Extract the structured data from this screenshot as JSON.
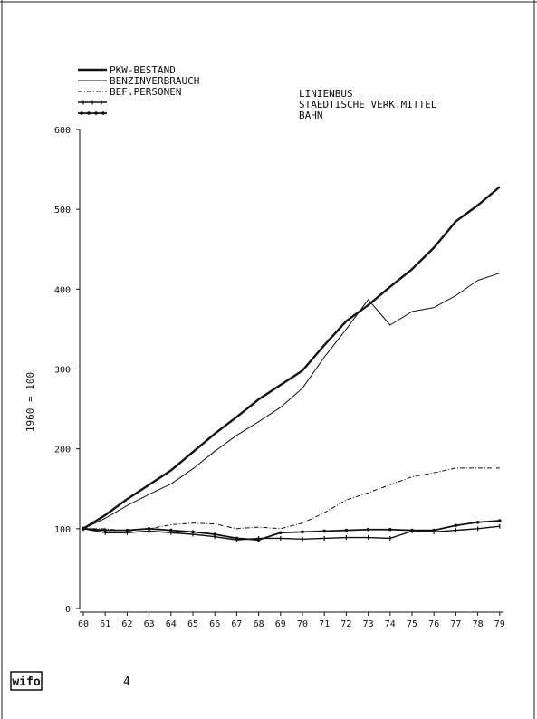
{
  "page": {
    "number": "4",
    "logo_text": "wifo"
  },
  "chart_data": {
    "type": "line",
    "title": "",
    "xlabel": "",
    "ylabel": "1960 = 100",
    "ylim": [
      0,
      600
    ],
    "yticks": [
      0,
      100,
      200,
      300,
      400,
      500,
      600
    ],
    "grid": false,
    "legend_placement": "top-left",
    "x": [
      "60",
      "61",
      "62",
      "63",
      "64",
      "65",
      "66",
      "67",
      "68",
      "69",
      "70",
      "71",
      "72",
      "73",
      "74",
      "75",
      "76",
      "77",
      "78",
      "79"
    ],
    "series": [
      {
        "name": "PKW-BESTAND",
        "style": "thick",
        "values": [
          100,
          117,
          137,
          155,
          173,
          196,
          219,
          240,
          262,
          280,
          298,
          330,
          360,
          380,
          403,
          425,
          452,
          485,
          505,
          528
        ]
      },
      {
        "name": "BENZINVERBRAUCH",
        "style": "thin",
        "values": [
          100,
          113,
          129,
          143,
          156,
          175,
          197,
          217,
          234,
          252,
          276,
          315,
          350,
          387,
          355,
          372,
          377,
          392,
          411,
          420
        ]
      },
      {
        "name": "BEF.PERSONEN",
        "style": "dash-dot",
        "values": [
          100,
          100,
          97,
          100,
          105,
          107,
          106,
          100,
          102,
          100,
          107,
          120,
          136,
          145,
          155,
          165,
          170,
          176,
          176,
          176
        ]
      },
      {
        "name": "LINIENBUS",
        "style": "crossed",
        "values": [
          100,
          95,
          95,
          97,
          95,
          93,
          90,
          86,
          88,
          88,
          87,
          88,
          89,
          89,
          88,
          97,
          96,
          98,
          100,
          103
        ]
      },
      {
        "name": "STAEDTISCHE VERK.MITTEL",
        "style": "dotted",
        "values": [
          100,
          98,
          98,
          100,
          98,
          96,
          93,
          88,
          86,
          95,
          96,
          97,
          98,
          99,
          99,
          98,
          98,
          104,
          108,
          110
        ]
      }
    ],
    "legend_extra": [
      "BAHN"
    ]
  }
}
